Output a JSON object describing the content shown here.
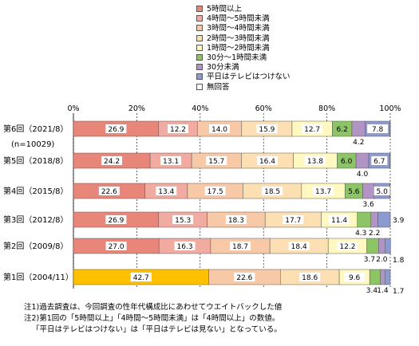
{
  "chart_data": {
    "type": "bar",
    "orientation": "horizontal",
    "stacked": true,
    "xlim": [
      0,
      100
    ],
    "x_ticks": [
      "0%",
      "20%",
      "40%",
      "60%",
      "80%",
      "100%"
    ],
    "categories": [
      {
        "label": "第6回（2021/8）",
        "sublabel": "(n=10029)"
      },
      {
        "label": "第5回（2018/8）",
        "sublabel": ""
      },
      {
        "label": "第4回（2015/8）",
        "sublabel": ""
      },
      {
        "label": "第3回（2012/8）",
        "sublabel": ""
      },
      {
        "label": "第2回（2009/8）",
        "sublabel": ""
      },
      {
        "label": "第1回（2004/11）",
        "sublabel": ""
      }
    ],
    "series": [
      {
        "name": "5時間以上",
        "color": "#E8867A",
        "values": [
          26.9,
          24.2,
          22.6,
          26.9,
          27.0,
          null
        ]
      },
      {
        "name": "4時間～5時間未満",
        "color": "#F2ABA0",
        "values": [
          12.2,
          13.1,
          13.4,
          15.3,
          16.3,
          null
        ]
      },
      {
        "name": "3時間～4時間未満",
        "color": "#F8C9A6",
        "values": [
          14.0,
          15.7,
          17.5,
          18.3,
          18.7,
          22.6
        ]
      },
      {
        "name": "2時間～3時間未満",
        "color": "#FCE0B4",
        "values": [
          15.9,
          16.4,
          18.5,
          17.7,
          18.4,
          18.6
        ]
      },
      {
        "name": "1時間～2時間未満",
        "color": "#FFF8C0",
        "values": [
          12.7,
          13.8,
          13.7,
          11.4,
          12.2,
          9.6
        ]
      },
      {
        "name": "30分～1時間未満",
        "color": "#8DC466",
        "values": [
          6.2,
          6.0,
          5.6,
          4.3,
          3.7,
          3.4
        ]
      },
      {
        "name": "30分未満",
        "color": "#B294C4",
        "values": [
          4.2,
          4.0,
          3.6,
          2.2,
          2.0,
          1.4
        ]
      },
      {
        "name": "平日はテレビはつけない",
        "color": "#8C9AD0",
        "values": [
          7.8,
          6.7,
          5.0,
          3.9,
          1.8,
          1.7
        ]
      },
      {
        "name": "無回答",
        "color": "#FFFFFF",
        "values": [
          0.1,
          0.1,
          0.1,
          0.0,
          0.0,
          0.0
        ]
      }
    ],
    "combined_series": {
      "name": "5時間以上+4時間～5時間未満",
      "color": "#FFC000",
      "values": [
        null,
        null,
        null,
        null,
        null,
        42.7
      ]
    },
    "legend_position": "top-right",
    "grid": true
  },
  "notes": [
    "注1)過去調査は、今回調査の性年代構成比にあわせてウエイトバックした値",
    "注2)第1回の「5時間以上」「4時間～5時間未満」は「4時間以上」の数値。",
    "「平日はテレビはつけない」は「平日はテレビは見ない」となっている。"
  ]
}
